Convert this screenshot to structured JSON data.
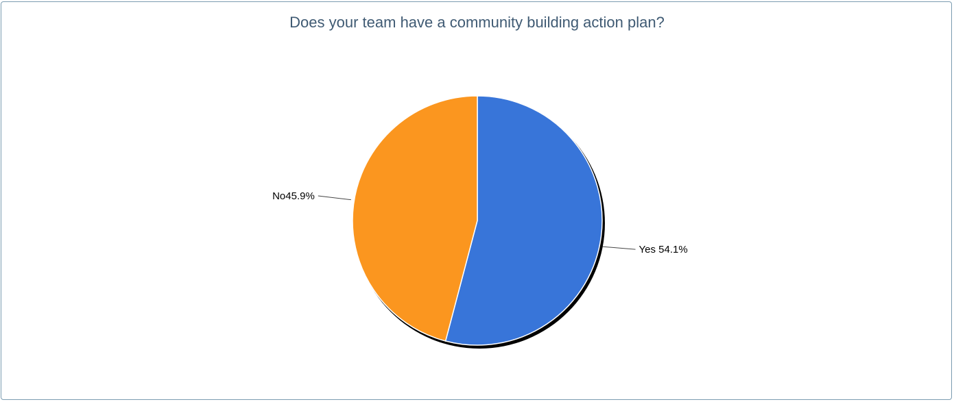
{
  "chart_data": {
    "type": "pie",
    "title": "Does your team have a community building action plan?",
    "slices": [
      {
        "label": "Yes",
        "value": 54.1,
        "display": "54.1%",
        "color": "#3875d9"
      },
      {
        "label": "No",
        "value": 45.9,
        "display": "45.9%",
        "color": "#fb961f"
      }
    ],
    "start_angle_deg": 0,
    "direction": "clockwise",
    "legend": "none",
    "labels": "outside with leader lines"
  }
}
